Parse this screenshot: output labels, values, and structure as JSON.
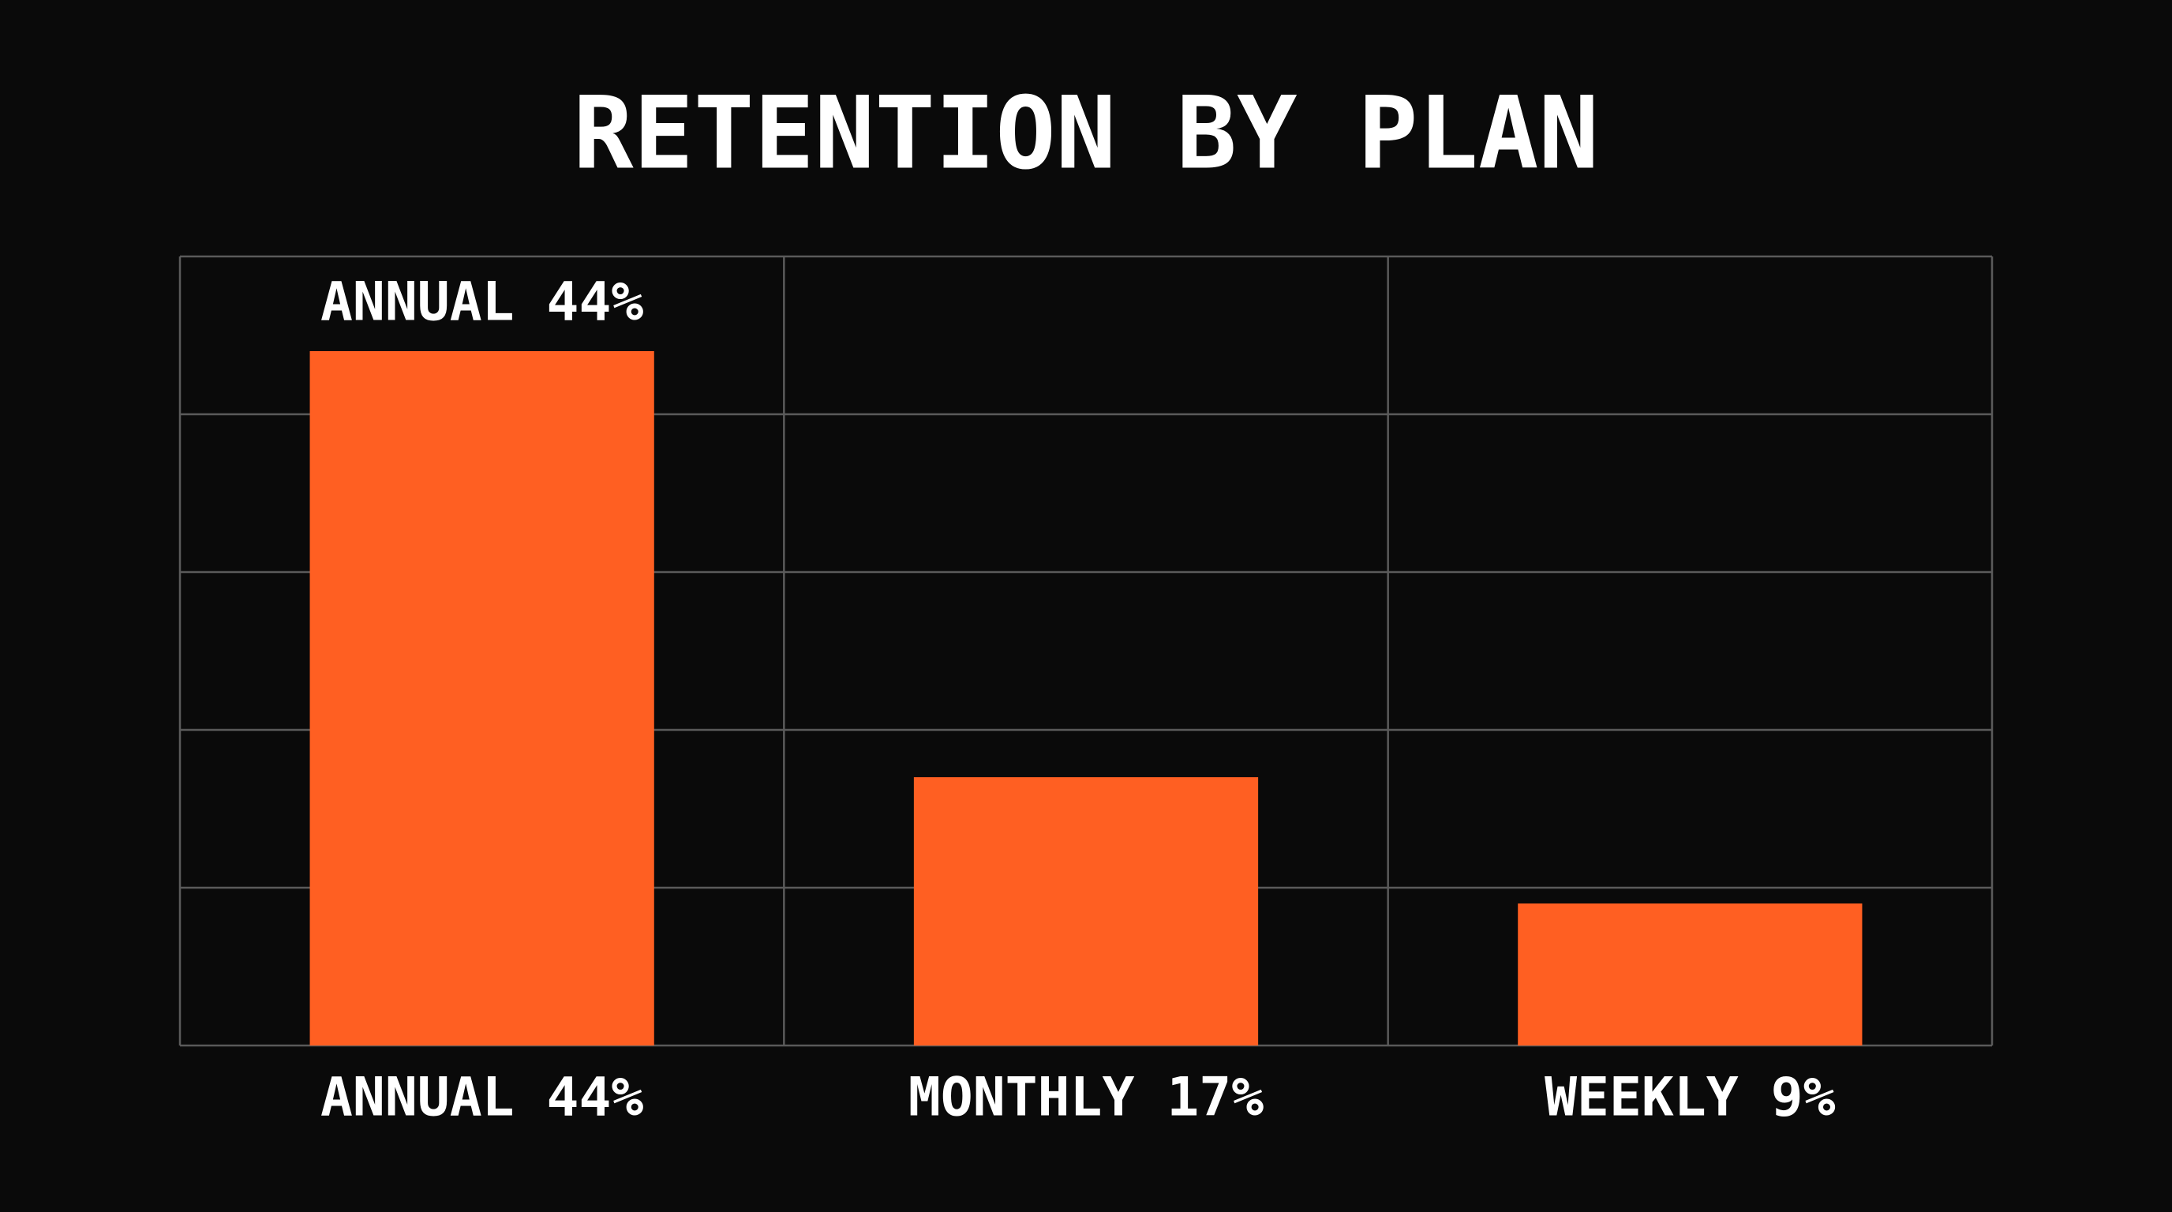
{
  "chart_data": {
    "type": "bar",
    "title": "RETENTION BY PLAN",
    "categories": [
      "ANNUAL 44%",
      "MONTHLY 17%",
      "WEEKLY 9%"
    ],
    "values": [
      44,
      17,
      9
    ],
    "value_labels": [
      "ANNUAL 44%",
      null,
      null
    ],
    "color": "#ff5f22",
    "ylim": [
      0,
      50
    ],
    "yticks": [
      0,
      10,
      20,
      30,
      40,
      50
    ],
    "grid": true
  }
}
